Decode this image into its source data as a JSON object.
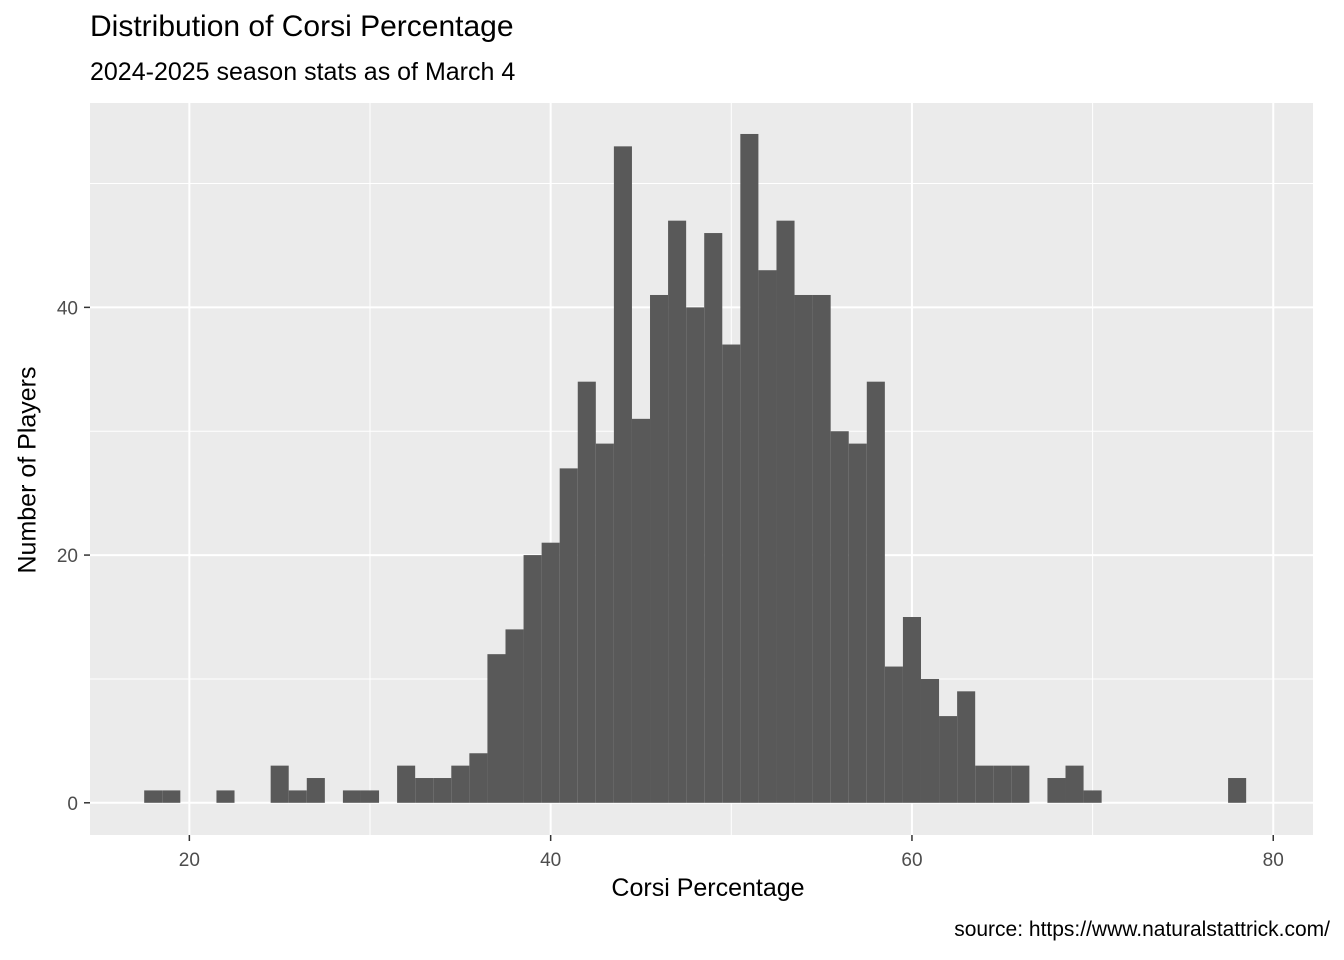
{
  "chart_data": {
    "type": "bar",
    "title": "Distribution of Corsi Percentage",
    "subtitle": "2024-2025 season stats as of March 4",
    "xlabel": "Corsi Percentage",
    "ylabel": "Number of Players",
    "caption": "source: https://www.naturalstattrick.com/",
    "xlim": [
      14.5,
      82.2
    ],
    "ylim": [
      -2.6,
      56.5
    ],
    "x_ticks": [
      20,
      40,
      60,
      80
    ],
    "y_ticks": [
      0,
      20,
      40
    ],
    "grid": true,
    "bin_width": 1,
    "bins": [
      {
        "x": 18,
        "count": 1
      },
      {
        "x": 19,
        "count": 1
      },
      {
        "x": 22,
        "count": 1
      },
      {
        "x": 25,
        "count": 3
      },
      {
        "x": 26,
        "count": 1
      },
      {
        "x": 27,
        "count": 2
      },
      {
        "x": 29,
        "count": 1
      },
      {
        "x": 30,
        "count": 1
      },
      {
        "x": 32,
        "count": 3
      },
      {
        "x": 33,
        "count": 2
      },
      {
        "x": 34,
        "count": 2
      },
      {
        "x": 35,
        "count": 3
      },
      {
        "x": 36,
        "count": 4
      },
      {
        "x": 37,
        "count": 12
      },
      {
        "x": 38,
        "count": 14
      },
      {
        "x": 39,
        "count": 20
      },
      {
        "x": 40,
        "count": 21
      },
      {
        "x": 41,
        "count": 27
      },
      {
        "x": 42,
        "count": 34
      },
      {
        "x": 43,
        "count": 29
      },
      {
        "x": 44,
        "count": 53
      },
      {
        "x": 45,
        "count": 31
      },
      {
        "x": 46,
        "count": 41
      },
      {
        "x": 47,
        "count": 47
      },
      {
        "x": 48,
        "count": 40
      },
      {
        "x": 49,
        "count": 46
      },
      {
        "x": 50,
        "count": 37
      },
      {
        "x": 51,
        "count": 54
      },
      {
        "x": 52,
        "count": 43
      },
      {
        "x": 53,
        "count": 47
      },
      {
        "x": 54,
        "count": 41
      },
      {
        "x": 55,
        "count": 41
      },
      {
        "x": 56,
        "count": 30
      },
      {
        "x": 57,
        "count": 29
      },
      {
        "x": 58,
        "count": 34
      },
      {
        "x": 59,
        "count": 11
      },
      {
        "x": 60,
        "count": 15
      },
      {
        "x": 61,
        "count": 10
      },
      {
        "x": 62,
        "count": 7
      },
      {
        "x": 63,
        "count": 9
      },
      {
        "x": 64,
        "count": 3
      },
      {
        "x": 65,
        "count": 3
      },
      {
        "x": 66,
        "count": 3
      },
      {
        "x": 68,
        "count": 2
      },
      {
        "x": 69,
        "count": 3
      },
      {
        "x": 70,
        "count": 1
      },
      {
        "x": 78,
        "count": 2
      }
    ],
    "colors": {
      "bar": "#595959",
      "panel": "#ebebeb",
      "grid": "#ffffff"
    }
  }
}
